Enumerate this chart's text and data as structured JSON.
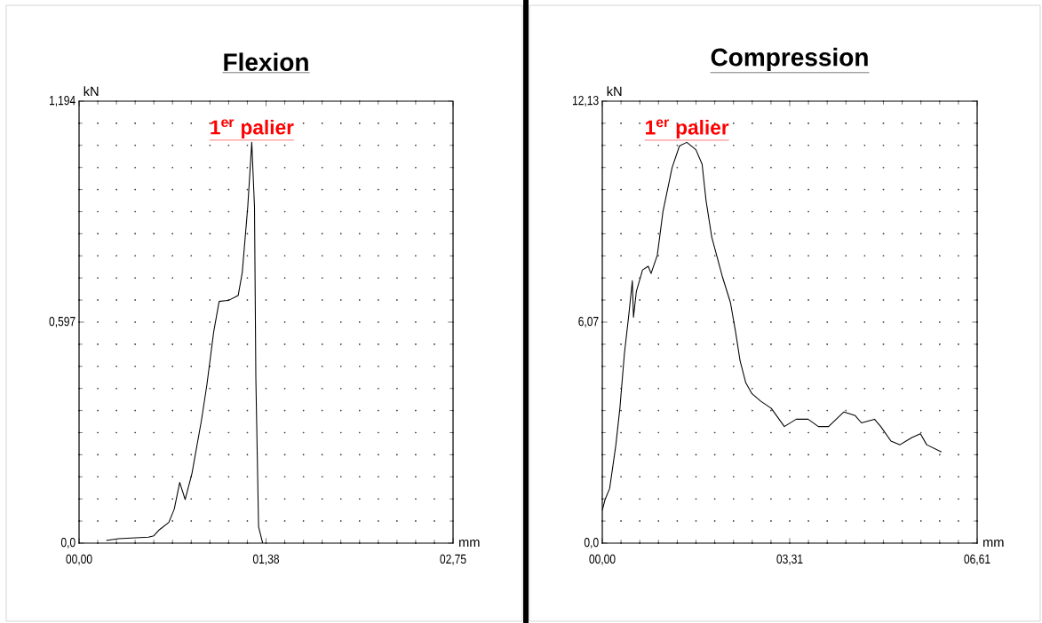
{
  "chart_data": [
    {
      "type": "line",
      "title": "Flexion",
      "xlabel": "mm",
      "ylabel": "kN",
      "color": "#000000",
      "grid": true,
      "xlim": [
        0,
        2.75
      ],
      "ylim": [
        0,
        1.194
      ],
      "xticks": [
        {
          "value": 0,
          "label": "00,00"
        },
        {
          "value": 1.375,
          "label": "01,38"
        },
        {
          "value": 2.75,
          "label": "02,75"
        }
      ],
      "yticks": [
        {
          "value": 0,
          "label": "0,0"
        },
        {
          "value": 0.597,
          "label": "0,597"
        },
        {
          "value": 1.194,
          "label": "1,194"
        }
      ],
      "x": [
        0.2,
        0.29,
        0.51,
        0.55,
        0.59,
        0.66,
        0.7,
        0.74,
        0.78,
        0.83,
        0.9,
        0.94,
        0.99,
        1.03,
        1.1,
        1.17,
        1.2,
        1.24,
        1.27,
        1.29,
        1.3,
        1.32,
        1.35
      ],
      "values": [
        0.007,
        0.012,
        0.016,
        0.02,
        0.036,
        0.056,
        0.092,
        0.164,
        0.118,
        0.188,
        0.332,
        0.428,
        0.571,
        0.653,
        0.656,
        0.669,
        0.731,
        0.907,
        1.083,
        0.907,
        0.444,
        0.044,
        0
      ],
      "annotations": [
        {
          "text": "1$^{er}$ palier",
          "x": 1.27,
          "y": 1.083
        }
      ]
    },
    {
      "type": "line",
      "title": "Compression",
      "xlabel": "mm",
      "ylabel": "kN",
      "color": "#000000",
      "grid": true,
      "xlim": [
        0,
        6.61
      ],
      "ylim": [
        0,
        12.13
      ],
      "xticks": [
        {
          "value": 0,
          "label": "00,00"
        },
        {
          "value": 3.305,
          "label": "03,31"
        },
        {
          "value": 6.61,
          "label": "06,61"
        }
      ],
      "yticks": [
        {
          "value": 0,
          "label": "0,0"
        },
        {
          "value": 6.065,
          "label": "6,07"
        },
        {
          "value": 12.13,
          "label": "12,13"
        }
      ],
      "x": [
        0,
        0.05,
        0.13,
        0.24,
        0.31,
        0.39,
        0.47,
        0.53,
        0.55,
        0.6,
        0.71,
        0.81,
        0.86,
        0.97,
        1.07,
        1.15,
        1.23,
        1.36,
        1.49,
        1.65,
        1.76,
        1.83,
        1.93,
        2.12,
        2.26,
        2.35,
        2.43,
        2.53,
        2.64,
        2.79,
        2.98,
        3.21,
        3.42,
        3.63,
        3.81,
        3.99,
        4.26,
        4.46,
        4.57,
        4.8,
        4.91,
        5.09,
        5.25,
        5.46,
        5.61,
        5.72,
        5.98
      ],
      "values": [
        0.9,
        1.2,
        1.5,
        2.7,
        3.7,
        5.2,
        6.3,
        7.2,
        6.2,
        6.9,
        7.5,
        7.6,
        7.4,
        7.9,
        9.1,
        9.7,
        10.3,
        10.9,
        11.0,
        10.8,
        10.4,
        9.4,
        8.4,
        7.3,
        6.6,
        5.8,
        5.0,
        4.4,
        4.1,
        3.9,
        3.7,
        3.2,
        3.4,
        3.4,
        3.2,
        3.2,
        3.6,
        3.5,
        3.3,
        3.4,
        3.2,
        2.8,
        2.7,
        2.9,
        3.0,
        2.7,
        2.5
      ],
      "annotations": [
        {
          "text": "1$^{er}$ palier",
          "x": 1.49,
          "y": 11.0
        }
      ]
    }
  ]
}
